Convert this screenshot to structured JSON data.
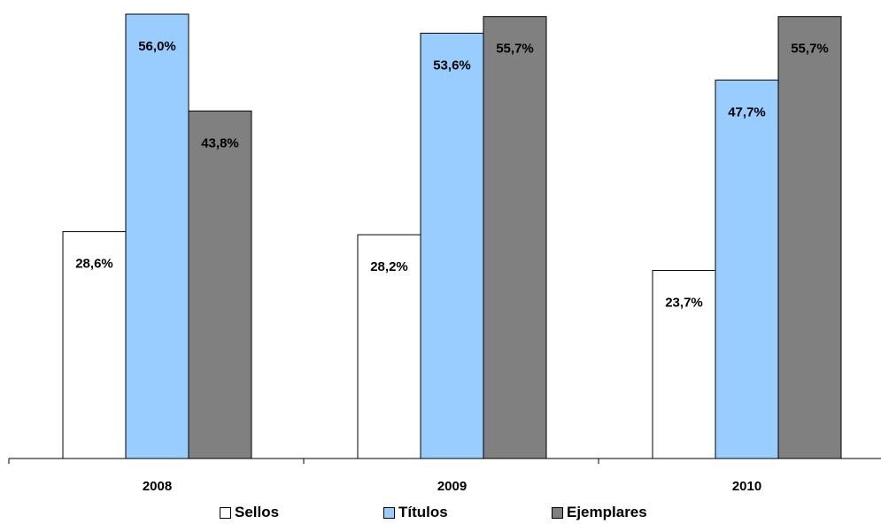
{
  "chart_data": {
    "type": "bar",
    "categories": [
      "2008",
      "2009",
      "2010"
    ],
    "series": [
      {
        "name": "Sellos",
        "color": "#ffffff",
        "values": [
          28.6,
          28.2,
          23.7
        ],
        "labels": [
          "28,6%",
          "28,2%",
          "23,7%"
        ]
      },
      {
        "name": "Títulos",
        "color": "#99ccff",
        "values": [
          56.0,
          53.6,
          47.7
        ],
        "labels": [
          "56,0%",
          "53,6%",
          "47,7%"
        ]
      },
      {
        "name": "Ejemplares",
        "color": "#808080",
        "values": [
          43.8,
          55.7,
          55.7
        ],
        "labels": [
          "43,8%",
          "55,7%",
          "55,7%"
        ]
      }
    ],
    "ylim": [
      0,
      56.0
    ],
    "grid": false,
    "legend_position": "bottom"
  }
}
